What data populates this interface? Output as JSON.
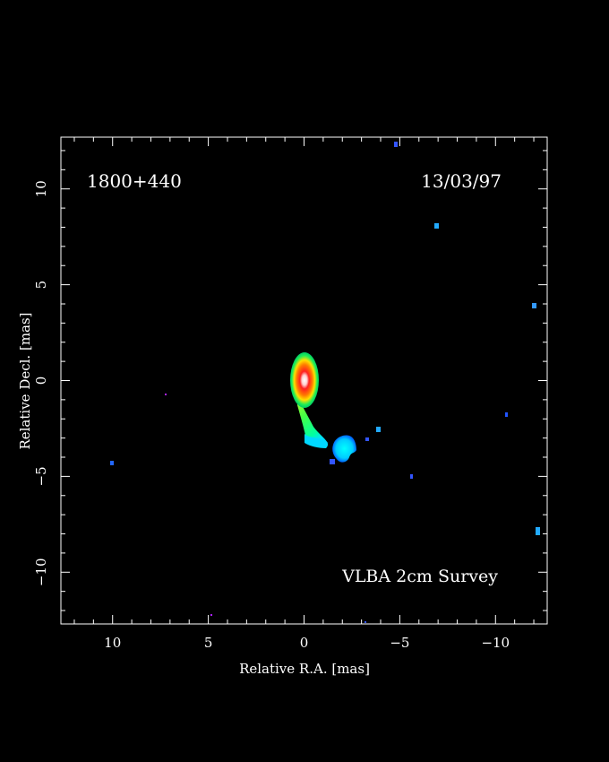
{
  "image": {
    "source_label": "1800+440",
    "date_label": "13/03/97",
    "survey_label": "VLBA 2cm Survey",
    "x_axis_label": "Relative R.A. [mas]",
    "y_axis_label": "Relative Decl. [mas]",
    "x_tick_labels": [
      {
        "value": 10,
        "text": "10"
      },
      {
        "value": 5,
        "text": "5"
      },
      {
        "value": 0,
        "text": "0"
      },
      {
        "value": -5,
        "text": "−5"
      },
      {
        "value": -10,
        "text": "−10"
      }
    ],
    "y_tick_labels": [
      {
        "value": 10,
        "text": "10"
      },
      {
        "value": 5,
        "text": "5"
      },
      {
        "value": 0,
        "text": "0"
      },
      {
        "value": -5,
        "text": "−5"
      },
      {
        "value": -10,
        "text": "−10"
      }
    ],
    "x_range_mas": [
      12.7,
      -12.7
    ],
    "y_range_mas": [
      -12.7,
      12.7
    ],
    "colors": {
      "background": "#000000",
      "frame": "#ffffff",
      "core_peak": "#ffffff",
      "jet_mid": "#00ff66",
      "faint_emission": "#0077ff"
    }
  }
}
